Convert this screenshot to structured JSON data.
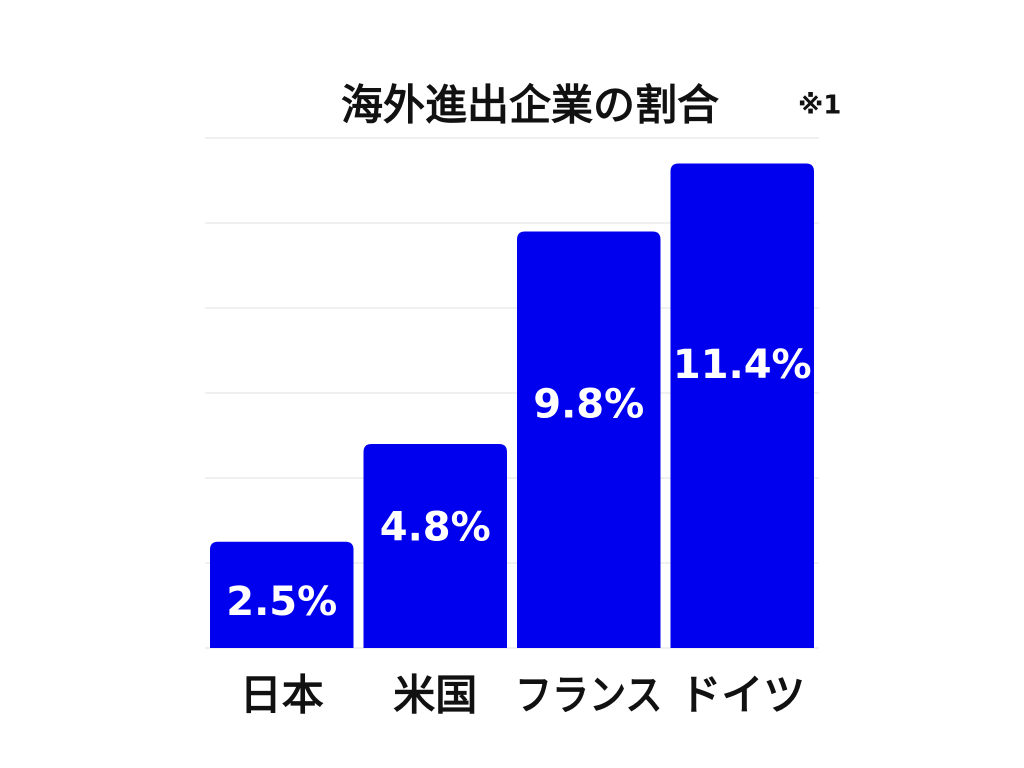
{
  "chart_data": {
    "type": "bar",
    "title": "海外進出企業の割合",
    "annotation": "※1",
    "categories": [
      "日本",
      "米国",
      "フランス",
      "ドイツ"
    ],
    "values": [
      2.5,
      4.8,
      9.8,
      11.4
    ],
    "value_labels": [
      "2.5%",
      "4.8%",
      "9.8%",
      "11.4%"
    ],
    "color": "#0000ee",
    "ylim": [
      0,
      12
    ],
    "yticks": [
      0,
      2,
      4,
      6,
      8,
      10,
      12
    ],
    "grid": true
  }
}
